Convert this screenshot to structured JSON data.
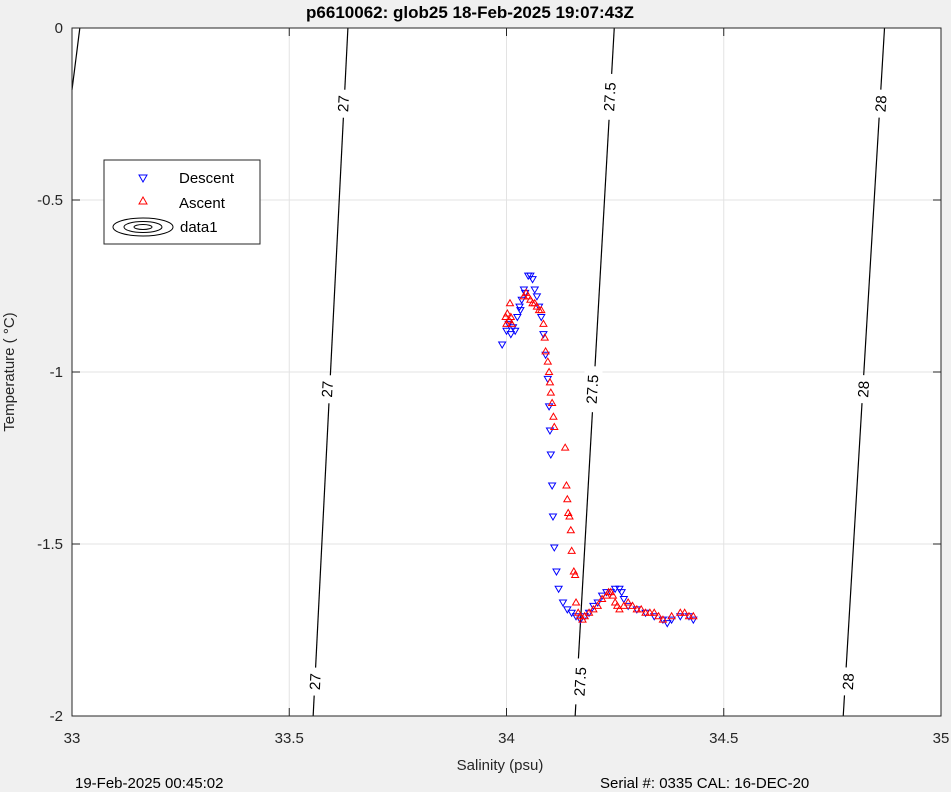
{
  "chart_data": {
    "type": "scatter",
    "title": "p6610062: glob25 18-Feb-2025 19:07:43Z",
    "xlabel": "Salinity (psu)",
    "ylabel": "Temperature (   °C)",
    "xlim": [
      33,
      35
    ],
    "ylim": [
      -2,
      0
    ],
    "xticks": [
      "33",
      "33.5",
      "34",
      "34.5",
      "35"
    ],
    "yticks": [
      "0",
      "-0.5",
      "-1",
      "-1.5",
      "-2"
    ],
    "grid": true,
    "legend_position": "upper-left",
    "legend": [
      "Descent",
      "Ascent",
      "data1"
    ],
    "footer_left": "19-Feb-2025 00:45:02",
    "footer_right": "Serial #: 0335  CAL: 16-DEC-20",
    "contours": [
      {
        "label": "27",
        "points": [
          [
            33.555,
            -2
          ],
          [
            33.635,
            0
          ]
        ],
        "label_at": [
          [
            33.625,
            -0.22
          ],
          [
            33.588,
            -1.05
          ],
          [
            33.56,
            -1.9
          ]
        ]
      },
      {
        "label": "27.5",
        "points": [
          [
            34.158,
            -2
          ],
          [
            34.248,
            0
          ]
        ],
        "label_at": [
          [
            34.238,
            -0.2
          ],
          [
            34.198,
            -1.05
          ],
          [
            34.17,
            -1.9
          ]
        ]
      },
      {
        "label": "28",
        "points": [
          [
            34.775,
            -2
          ],
          [
            34.87,
            0
          ]
        ],
        "label_at": [
          [
            34.862,
            -0.22
          ],
          [
            34.822,
            -1.05
          ],
          [
            34.787,
            -1.9
          ]
        ]
      },
      {
        "label": "",
        "points": [
          [
            33.0,
            -0.18
          ],
          [
            33.018,
            0
          ]
        ],
        "label_at": []
      }
    ],
    "series": [
      {
        "name": "Descent",
        "color": "#0000ff",
        "marker": "triangle-down",
        "points": [
          [
            33.99,
            -0.92
          ],
          [
            34.0,
            -0.88
          ],
          [
            34.005,
            -0.86
          ],
          [
            34.01,
            -0.89
          ],
          [
            34.015,
            -0.87
          ],
          [
            34.02,
            -0.88
          ],
          [
            34.025,
            -0.84
          ],
          [
            34.03,
            -0.81
          ],
          [
            34.032,
            -0.82
          ],
          [
            34.035,
            -0.79
          ],
          [
            34.04,
            -0.76
          ],
          [
            34.043,
            -0.77
          ],
          [
            34.05,
            -0.72
          ],
          [
            34.055,
            -0.72
          ],
          [
            34.06,
            -0.73
          ],
          [
            34.065,
            -0.76
          ],
          [
            34.07,
            -0.78
          ],
          [
            34.075,
            -0.81
          ],
          [
            34.08,
            -0.84
          ],
          [
            34.085,
            -0.89
          ],
          [
            34.09,
            -0.95
          ],
          [
            34.095,
            -1.02
          ],
          [
            34.098,
            -1.1
          ],
          [
            34.1,
            -1.17
          ],
          [
            34.102,
            -1.24
          ],
          [
            34.105,
            -1.33
          ],
          [
            34.107,
            -1.42
          ],
          [
            34.11,
            -1.51
          ],
          [
            34.115,
            -1.58
          ],
          [
            34.12,
            -1.63
          ],
          [
            34.13,
            -1.67
          ],
          [
            34.14,
            -1.69
          ],
          [
            34.15,
            -1.7
          ],
          [
            34.16,
            -1.71
          ],
          [
            34.17,
            -1.72
          ],
          [
            34.18,
            -1.71
          ],
          [
            34.19,
            -1.7
          ],
          [
            34.2,
            -1.68
          ],
          [
            34.21,
            -1.67
          ],
          [
            34.22,
            -1.65
          ],
          [
            34.23,
            -1.64
          ],
          [
            34.24,
            -1.64
          ],
          [
            34.25,
            -1.63
          ],
          [
            34.26,
            -1.63
          ],
          [
            34.265,
            -1.64
          ],
          [
            34.27,
            -1.66
          ],
          [
            34.28,
            -1.68
          ],
          [
            34.3,
            -1.69
          ],
          [
            34.32,
            -1.7
          ],
          [
            34.34,
            -1.71
          ],
          [
            34.36,
            -1.72
          ],
          [
            34.37,
            -1.73
          ],
          [
            34.38,
            -1.72
          ],
          [
            34.4,
            -1.71
          ],
          [
            34.42,
            -1.71
          ],
          [
            34.43,
            -1.72
          ]
        ]
      },
      {
        "name": "Ascent",
        "color": "#ff0000",
        "marker": "triangle-up",
        "points": [
          [
            34.0,
            -0.86
          ],
          [
            33.998,
            -0.84
          ],
          [
            34.002,
            -0.83
          ],
          [
            34.006,
            -0.85
          ],
          [
            34.01,
            -0.84
          ],
          [
            34.008,
            -0.8
          ],
          [
            34.012,
            -0.86
          ],
          [
            34.04,
            -0.78
          ],
          [
            34.045,
            -0.77
          ],
          [
            34.05,
            -0.78
          ],
          [
            34.055,
            -0.79
          ],
          [
            34.06,
            -0.8
          ],
          [
            34.065,
            -0.8
          ],
          [
            34.07,
            -0.81
          ],
          [
            34.075,
            -0.82
          ],
          [
            34.08,
            -0.82
          ],
          [
            34.085,
            -0.86
          ],
          [
            34.088,
            -0.9
          ],
          [
            34.09,
            -0.94
          ],
          [
            34.095,
            -0.97
          ],
          [
            34.098,
            -1.0
          ],
          [
            34.1,
            -1.03
          ],
          [
            34.102,
            -1.06
          ],
          [
            34.105,
            -1.09
          ],
          [
            34.108,
            -1.13
          ],
          [
            34.11,
            -1.16
          ],
          [
            34.135,
            -1.22
          ],
          [
            34.138,
            -1.33
          ],
          [
            34.14,
            -1.37
          ],
          [
            34.142,
            -1.41
          ],
          [
            34.145,
            -1.42
          ],
          [
            34.148,
            -1.46
          ],
          [
            34.15,
            -1.52
          ],
          [
            34.155,
            -1.58
          ],
          [
            34.158,
            -1.59
          ],
          [
            34.16,
            -1.67
          ],
          [
            34.165,
            -1.7
          ],
          [
            34.17,
            -1.71
          ],
          [
            34.175,
            -1.72
          ],
          [
            34.18,
            -1.71
          ],
          [
            34.19,
            -1.7
          ],
          [
            34.2,
            -1.69
          ],
          [
            34.21,
            -1.68
          ],
          [
            34.22,
            -1.66
          ],
          [
            34.23,
            -1.65
          ],
          [
            34.235,
            -1.64
          ],
          [
            34.24,
            -1.64
          ],
          [
            34.245,
            -1.65
          ],
          [
            34.25,
            -1.67
          ],
          [
            34.255,
            -1.68
          ],
          [
            34.26,
            -1.69
          ],
          [
            34.27,
            -1.68
          ],
          [
            34.28,
            -1.67
          ],
          [
            34.29,
            -1.68
          ],
          [
            34.3,
            -1.69
          ],
          [
            34.31,
            -1.69
          ],
          [
            34.32,
            -1.7
          ],
          [
            34.33,
            -1.7
          ],
          [
            34.34,
            -1.7
          ],
          [
            34.35,
            -1.71
          ],
          [
            34.36,
            -1.72
          ],
          [
            34.38,
            -1.71
          ],
          [
            34.4,
            -1.7
          ],
          [
            34.41,
            -1.7
          ],
          [
            34.42,
            -1.71
          ],
          [
            34.43,
            -1.71
          ]
        ]
      }
    ]
  }
}
